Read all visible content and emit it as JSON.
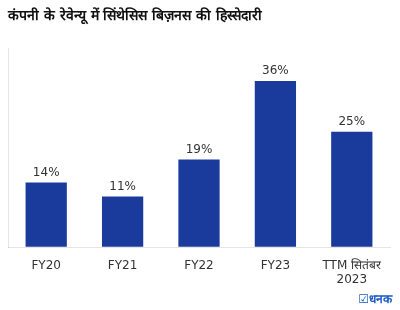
{
  "chart_data": {
    "type": "bar",
    "title": "कंपनी के रेवेन्यू में सिंथेसिस बिज़नस की हिस्सेदारी",
    "categories": [
      "FY20",
      "FY21",
      "FY22",
      "FY23",
      "TTM सितंबर\n2023"
    ],
    "values": [
      14,
      11,
      19,
      36,
      25
    ],
    "value_labels": [
      "14%",
      "11%",
      "19%",
      "36%",
      "25%"
    ],
    "data_labels": true,
    "color": "#1a3a9c",
    "ylim": [
      0,
      43
    ],
    "tick_labels": "x",
    "grid": false,
    "annotations": [
      "☑धनक"
    ]
  }
}
